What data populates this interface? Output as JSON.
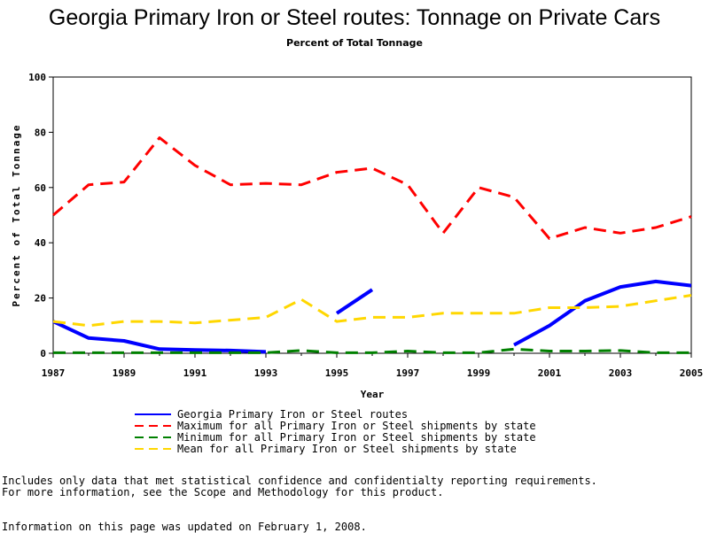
{
  "chart_data": {
    "type": "line",
    "title": "Georgia Primary Iron or Steel routes: Tonnage on Private Cars",
    "subtitle": "Percent of Total Tonnage",
    "xlabel": "Year",
    "ylabel": "Percent of Total Tonnage",
    "xlim": [
      1987,
      2005
    ],
    "ylim": [
      0,
      100
    ],
    "x_ticks": [
      "1987",
      "1989",
      "1991",
      "1993",
      "1995",
      "1997",
      "1999",
      "2001",
      "2003",
      "2005"
    ],
    "y_ticks": [
      "0",
      "20",
      "40",
      "60",
      "80",
      "100"
    ],
    "grid": false,
    "legend_position": "bottom",
    "series": [
      {
        "name": "Georgia Primary Iron or Steel routes",
        "color": "#0000ff",
        "style": "solid",
        "points": [
          [
            1987,
            11.5
          ],
          [
            1988,
            5.5
          ],
          [
            1989,
            4.5
          ],
          [
            1990,
            1.5
          ],
          [
            1991,
            1.2
          ],
          [
            1992,
            1
          ],
          [
            1993,
            0.5
          ],
          null,
          [
            1995,
            14.5
          ],
          [
            1996,
            23
          ],
          null,
          [
            2000,
            3
          ],
          [
            2001,
            10
          ],
          [
            2002,
            19
          ],
          [
            2003,
            24
          ],
          [
            2004,
            26
          ],
          [
            2005,
            24.5
          ]
        ]
      },
      {
        "name": "Maximum for all Primary Iron or Steel shipments by state",
        "color": "#ff0000",
        "style": "dashed",
        "points": [
          [
            1987,
            50
          ],
          [
            1988,
            61
          ],
          [
            1989,
            62
          ],
          [
            1990,
            78
          ],
          [
            1991,
            68
          ],
          [
            1992,
            61
          ],
          [
            1993,
            61.5
          ],
          [
            1994,
            61
          ],
          [
            1995,
            65.5
          ],
          [
            1996,
            67
          ],
          [
            1997,
            61
          ],
          [
            1998,
            43.5
          ],
          [
            1999,
            60
          ],
          [
            2000,
            56.5
          ],
          [
            2001,
            41.5
          ],
          [
            2002,
            45.5
          ],
          [
            2003,
            43.5
          ],
          [
            2004,
            45.5
          ],
          [
            2005,
            49.5
          ]
        ]
      },
      {
        "name": "Minimum for all Primary Iron or Steel shipments by state",
        "color": "#008000",
        "style": "dashed",
        "points": [
          [
            1987,
            0.2
          ],
          [
            1988,
            0.2
          ],
          [
            1989,
            0.2
          ],
          [
            1990,
            0.2
          ],
          [
            1991,
            0.2
          ],
          [
            1992,
            0.2
          ],
          [
            1993,
            0.2
          ],
          [
            1994,
            1
          ],
          [
            1995,
            0.2
          ],
          [
            1996,
            0.2
          ],
          [
            1997,
            0.8
          ],
          [
            1998,
            0.2
          ],
          [
            1999,
            0.2
          ],
          [
            2000,
            1.5
          ],
          [
            2001,
            0.8
          ],
          [
            2002,
            0.8
          ],
          [
            2003,
            1
          ],
          [
            2004,
            0.2
          ],
          [
            2005,
            0.2
          ]
        ]
      },
      {
        "name": "Mean for all Primary Iron or Steel shipments by state",
        "color": "#ffd700",
        "style": "dashed",
        "points": [
          [
            1987,
            11.5
          ],
          [
            1988,
            10
          ],
          [
            1989,
            11.5
          ],
          [
            1990,
            11.5
          ],
          [
            1991,
            11
          ],
          [
            1992,
            12
          ],
          [
            1993,
            13
          ],
          [
            1994,
            19.5
          ],
          [
            1995,
            11.5
          ],
          [
            1996,
            13
          ],
          [
            1997,
            13
          ],
          [
            1998,
            14.5
          ],
          [
            1999,
            14.5
          ],
          [
            2000,
            14.5
          ],
          [
            2001,
            16.5
          ],
          [
            2002,
            16.5
          ],
          [
            2003,
            17
          ],
          [
            2004,
            19
          ],
          [
            2005,
            21
          ]
        ]
      }
    ]
  },
  "notes": {
    "line1": "Includes only data that met statistical confidence and confidentialty reporting requirements.",
    "line2": "For more information, see the Scope and Methodology for this product.",
    "line3": "Information on this page was updated on February 1, 2008."
  }
}
